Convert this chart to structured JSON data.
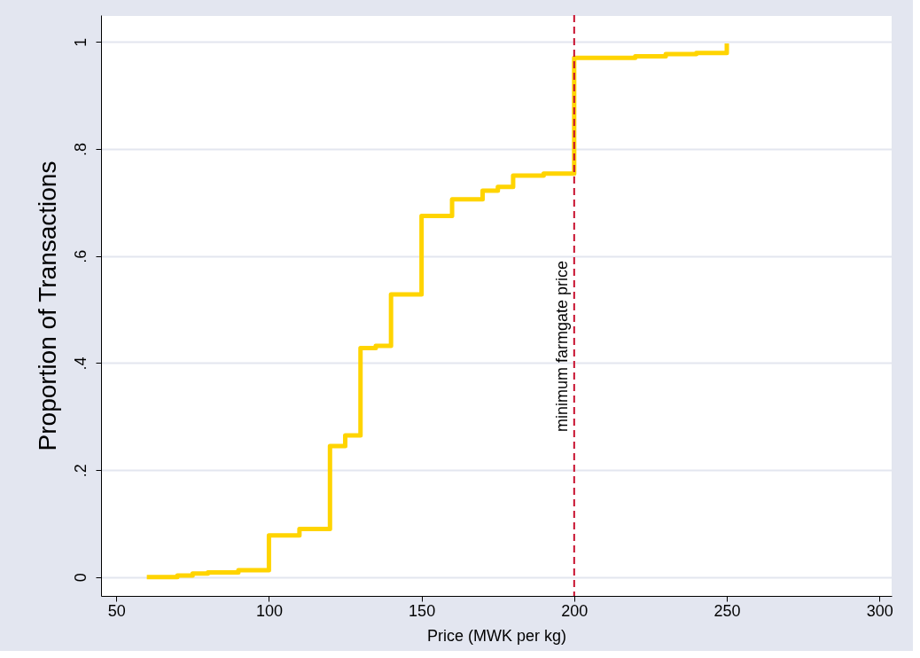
{
  "chart_data": {
    "type": "step",
    "xlabel": "Price (MWK per kg)",
    "ylabel": "Proportion of Transactions",
    "x": [
      60,
      70,
      75,
      80,
      90,
      100,
      110,
      120,
      125,
      130,
      135,
      140,
      150,
      160,
      170,
      175,
      180,
      190,
      200,
      220,
      230,
      240,
      250,
      250
    ],
    "series": [
      {
        "color": "#ffd400",
        "values": [
          0,
          0.003,
          0.007,
          0.009,
          0.013,
          0.078,
          0.09,
          0.245,
          0.265,
          0.428,
          0.432,
          0.528,
          0.675,
          0.706,
          0.722,
          0.729,
          0.75,
          0.754,
          0.97,
          0.973,
          0.977,
          0.979,
          0.982,
          0.997
        ]
      }
    ],
    "xlim": [
      45,
      304
    ],
    "xticks": [
      50,
      100,
      150,
      200,
      250,
      300
    ],
    "ylim": [
      -0.035,
      1.05
    ],
    "yticks": [
      {
        "value": 0,
        "label": "0"
      },
      {
        "value": 0.2,
        "label": ".2"
      },
      {
        "value": 0.4,
        "label": ".4"
      },
      {
        "value": 0.6,
        "label": ".6"
      },
      {
        "value": 0.8,
        "label": ".8"
      },
      {
        "value": 1,
        "label": "1"
      }
    ],
    "grid": "y",
    "line_style": "solid",
    "marker": "none",
    "ref_lines": [
      {
        "axis": "x",
        "value": 200,
        "label": "minimum farmgate price",
        "color": "#c8102e",
        "line_style": "dashed"
      }
    ]
  }
}
